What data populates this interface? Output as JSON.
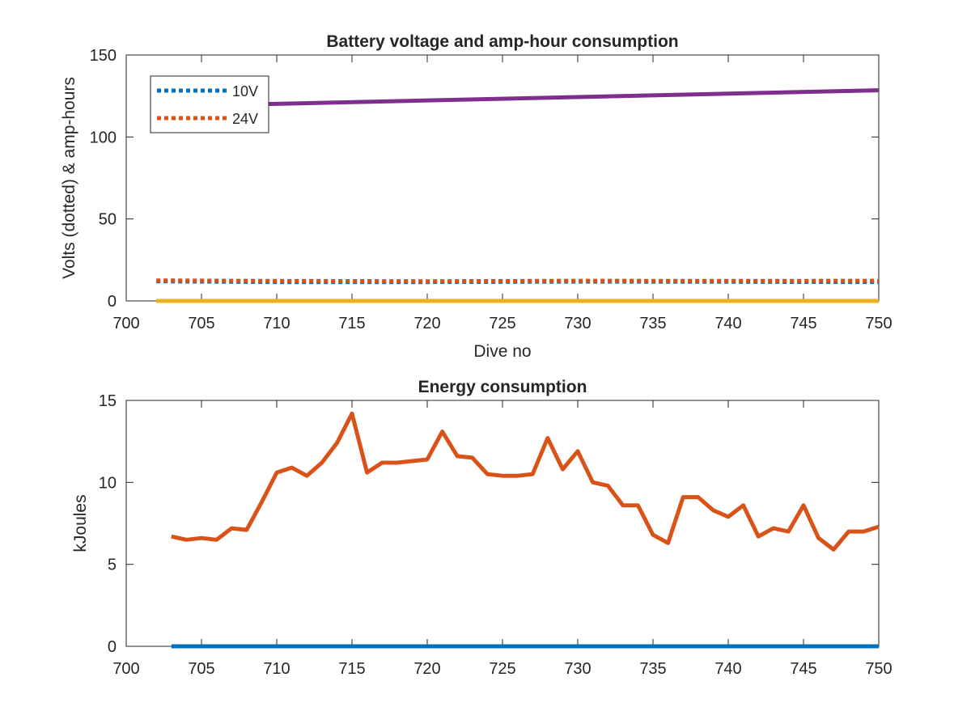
{
  "chart_data": [
    {
      "type": "line",
      "title": "Battery voltage and amp-hour consumption",
      "xlabel": "Dive no",
      "ylabel": "Volts (dotted) & amp-hours",
      "xlim": [
        700,
        750
      ],
      "ylim": [
        0,
        150
      ],
      "xticks": [
        "700",
        "705",
        "710",
        "715",
        "720",
        "725",
        "730",
        "735",
        "740",
        "745",
        "750"
      ],
      "yticks": [
        "0",
        "50",
        "100",
        "150"
      ],
      "legend": {
        "position": "top-left",
        "entries": [
          "10V",
          "24V"
        ]
      },
      "series": [
        {
          "name": "10V",
          "style": "dotted",
          "color": "#0072BD",
          "x": [
            702,
            710,
            720,
            730,
            740,
            750
          ],
          "y": [
            12,
            11.5,
            11.5,
            11.8,
            11.7,
            11.5
          ]
        },
        {
          "name": "24V",
          "style": "dotted",
          "color": "#D95319",
          "x": [
            702,
            710,
            720,
            730,
            740,
            750
          ],
          "y": [
            12.5,
            12.2,
            12,
            12.3,
            12.2,
            12.3
          ]
        },
        {
          "style": "solid",
          "color": "#7E2F8E",
          "x": [
            709,
            750
          ],
          "y": [
            120,
            128.5
          ]
        },
        {
          "style": "solid",
          "color": "#EDB120",
          "x": [
            702,
            750
          ],
          "y": [
            0,
            0
          ]
        }
      ]
    },
    {
      "type": "line",
      "title": "Energy consumption",
      "xlabel": "",
      "ylabel": "kJoules",
      "xlim": [
        700,
        750
      ],
      "ylim": [
        0,
        15
      ],
      "xticks": [
        "700",
        "705",
        "710",
        "715",
        "720",
        "725",
        "730",
        "735",
        "740",
        "745",
        "750"
      ],
      "yticks": [
        "0",
        "5",
        "10",
        "15"
      ],
      "series": [
        {
          "style": "solid",
          "color": "#D95319",
          "x": [
            703,
            704,
            705,
            706,
            707,
            708,
            709,
            710,
            711,
            712,
            713,
            714,
            715,
            716,
            717,
            718,
            719,
            720,
            721,
            722,
            723,
            724,
            725,
            726,
            727,
            728,
            729,
            730,
            731,
            732,
            733,
            734,
            735,
            736,
            737,
            738,
            739,
            740,
            741,
            742,
            743,
            744,
            745,
            746,
            747,
            748,
            749,
            750
          ],
          "y": [
            6.7,
            6.5,
            6.6,
            6.5,
            7.2,
            7.1,
            8.8,
            10.6,
            10.9,
            10.4,
            11.2,
            12.4,
            14.2,
            10.6,
            11.2,
            11.2,
            11.3,
            11.4,
            13.1,
            11.6,
            11.5,
            10.5,
            10.4,
            10.4,
            10.5,
            12.7,
            10.8,
            11.9,
            10.0,
            9.8,
            8.6,
            8.6,
            6.8,
            6.3,
            9.1,
            9.1,
            8.3,
            7.9,
            8.6,
            6.7,
            7.2,
            7.0,
            8.6,
            6.6,
            5.9,
            7.0,
            7.0,
            7.3
          ]
        },
        {
          "style": "solid",
          "color": "#0072BD",
          "x": [
            703,
            750
          ],
          "y": [
            0,
            0
          ]
        }
      ]
    }
  ]
}
